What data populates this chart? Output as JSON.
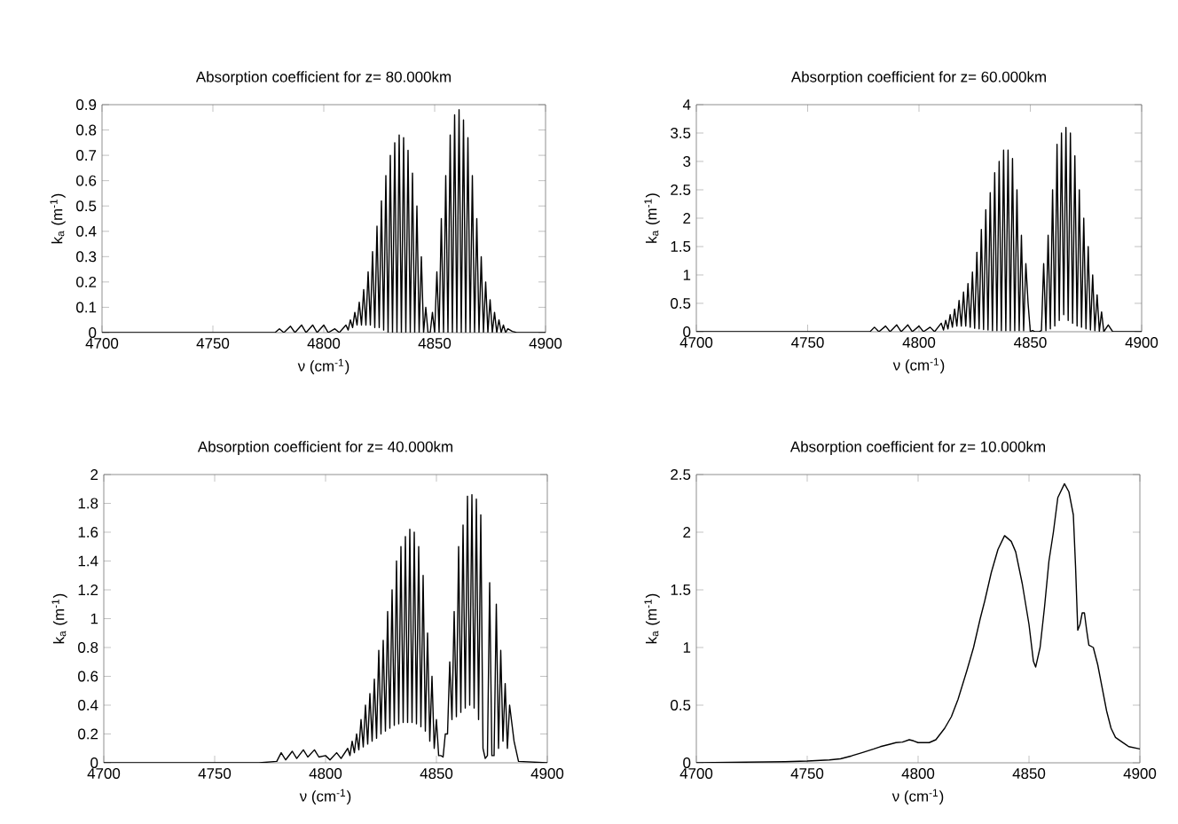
{
  "chart_data": [
    {
      "type": "line",
      "title": "Absorption coefficient for z= 80.000km",
      "xlabel": "ν (cm$^{-1}$)",
      "ylabel": "k$_{a}$ (m$^{-1}$)",
      "xlim": [
        4700,
        4900
      ],
      "ylim": [
        0,
        0.9
      ],
      "xticks": [
        4700,
        4750,
        4800,
        4850,
        4900
      ],
      "yticks": [
        0,
        0.1,
        0.2,
        0.3,
        0.4,
        0.5,
        0.6,
        0.7,
        0.8,
        0.9
      ],
      "grid": false,
      "marker": "none",
      "line_style": "solid",
      "series": [
        {
          "color": "#000000",
          "x": [
            4700,
            4770,
            4778,
            4780,
            4782,
            4785,
            4787,
            4790,
            4792,
            4795,
            4797,
            4800,
            4802,
            4805,
            4807,
            4810,
            4811,
            4812,
            4813,
            4814,
            4815,
            4816,
            4817,
            4818,
            4819,
            4820,
            4821,
            4822,
            4823,
            4824,
            4825,
            4826,
            4827,
            4828,
            4829,
            4830,
            4831,
            4832,
            4833,
            4834,
            4835,
            4836,
            4837,
            4838,
            4839,
            4840,
            4841,
            4842,
            4843,
            4844,
            4845,
            4846,
            4847,
            4848,
            4849,
            4850,
            4851,
            4852,
            4853,
            4854,
            4855,
            4856,
            4857,
            4858,
            4859,
            4860,
            4861,
            4862,
            4863,
            4864,
            4865,
            4866,
            4867,
            4868,
            4869,
            4870,
            4871,
            4872,
            4873,
            4874,
            4875,
            4876,
            4877,
            4878,
            4879,
            4880,
            4881,
            4882,
            4883,
            4885,
            4887,
            4900
          ],
          "values": [
            0,
            0,
            0,
            0.015,
            0,
            0.025,
            0,
            0.03,
            0,
            0.03,
            0,
            0.03,
            0,
            0.015,
            0,
            0.03,
            0.01,
            0.05,
            0.02,
            0.08,
            0.03,
            0.12,
            0.03,
            0.17,
            0.03,
            0.24,
            0.03,
            0.32,
            0.02,
            0.42,
            0.02,
            0.52,
            0.01,
            0.62,
            0,
            0.7,
            0,
            0.75,
            0,
            0.78,
            0,
            0.77,
            0,
            0.72,
            0,
            0.63,
            0,
            0.5,
            0,
            0.3,
            0,
            0.1,
            0,
            0,
            0.08,
            0,
            0.24,
            0,
            0.45,
            0,
            0.62,
            0,
            0.78,
            0,
            0.86,
            0,
            0.88,
            0,
            0.84,
            0,
            0.77,
            0,
            0.62,
            0,
            0.45,
            0,
            0.3,
            0,
            0.2,
            0,
            0.13,
            0,
            0.08,
            0,
            0.05,
            0,
            0.03,
            0,
            0.015,
            0.005,
            0,
            0
          ]
        }
      ]
    },
    {
      "type": "line",
      "title": "Absorption coefficient for z= 60.000km",
      "xlabel": "ν (cm$^{-1}$)",
      "ylabel": "k$_{a}$ (m$^{-1}$)",
      "xlim": [
        4700,
        4900
      ],
      "ylim": [
        0,
        4
      ],
      "xticks": [
        4700,
        4750,
        4800,
        4850,
        4900
      ],
      "yticks": [
        0,
        0.5,
        1,
        1.5,
        2,
        2.5,
        3,
        3.5,
        4
      ],
      "grid": false,
      "marker": "none",
      "line_style": "solid",
      "series": [
        {
          "color": "#000000",
          "x": [
            4700,
            4770,
            4778,
            4780,
            4782,
            4785,
            4787,
            4790,
            4792,
            4795,
            4797,
            4800,
            4802,
            4805,
            4807,
            4810,
            4811,
            4812,
            4813,
            4814,
            4815,
            4816,
            4817,
            4818,
            4819,
            4820,
            4821,
            4822,
            4823,
            4824,
            4825,
            4826,
            4827,
            4828,
            4829,
            4830,
            4831,
            4832,
            4833,
            4834,
            4835,
            4836,
            4837,
            4838,
            4839,
            4840,
            4841,
            4842,
            4843,
            4844,
            4845,
            4846,
            4847,
            4848,
            4849,
            4850,
            4851,
            4852,
            4853,
            4854,
            4855,
            4856,
            4857,
            4858,
            4859,
            4860,
            4861,
            4862,
            4863,
            4864,
            4865,
            4866,
            4867,
            4868,
            4869,
            4870,
            4871,
            4872,
            4873,
            4874,
            4875,
            4876,
            4877,
            4878,
            4879,
            4880,
            4881,
            4882,
            4883,
            4885,
            4887,
            4900
          ],
          "values": [
            0,
            0,
            0,
            0.08,
            0,
            0.1,
            0,
            0.12,
            0,
            0.12,
            0,
            0.1,
            0,
            0.08,
            0,
            0.15,
            0.03,
            0.2,
            0.05,
            0.3,
            0.08,
            0.4,
            0.1,
            0.55,
            0.1,
            0.7,
            0.1,
            0.85,
            0.08,
            1.05,
            0.06,
            1.4,
            0.05,
            1.8,
            0.04,
            2.15,
            0.03,
            2.45,
            0.02,
            2.8,
            0.02,
            3.0,
            0.02,
            3.2,
            0.02,
            3.2,
            0.02,
            3.05,
            0.02,
            2.5,
            0.02,
            1.7,
            0.02,
            1.2,
            0.5,
            0,
            0.02,
            0,
            0,
            0,
            0.02,
            1.2,
            0.02,
            1.7,
            0.05,
            2.5,
            0.1,
            3.3,
            0.2,
            3.5,
            0.3,
            3.6,
            0.2,
            3.5,
            0.15,
            3.1,
            0.1,
            2.5,
            0.08,
            2.0,
            0.05,
            1.5,
            0.03,
            1.0,
            0.02,
            0.65,
            0.01,
            0.35,
            0,
            0.12,
            0,
            0
          ]
        }
      ]
    },
    {
      "type": "line",
      "title": "Absorption coefficient for z= 40.000km",
      "xlabel": "ν (cm$^{-1}$)",
      "ylabel": "k$_{a}$ (m$^{-1}$)",
      "xlim": [
        4700,
        4900
      ],
      "ylim": [
        0,
        2
      ],
      "xticks": [
        4700,
        4750,
        4800,
        4850,
        4900
      ],
      "yticks": [
        0,
        0.2,
        0.4,
        0.6,
        0.8,
        1,
        1.2,
        1.4,
        1.6,
        1.8,
        2
      ],
      "grid": false,
      "marker": "none",
      "line_style": "solid",
      "series": [
        {
          "color": "#000000",
          "x": [
            4700,
            4770,
            4778,
            4780,
            4782,
            4785,
            4787,
            4790,
            4792,
            4795,
            4797,
            4800,
            4802,
            4805,
            4807,
            4810,
            4811,
            4812,
            4813,
            4814,
            4815,
            4816,
            4817,
            4818,
            4819,
            4820,
            4821,
            4822,
            4823,
            4824,
            4825,
            4826,
            4827,
            4828,
            4829,
            4830,
            4831,
            4832,
            4833,
            4834,
            4835,
            4836,
            4837,
            4838,
            4839,
            4840,
            4841,
            4842,
            4843,
            4844,
            4845,
            4846,
            4847,
            4848,
            4849,
            4850,
            4851,
            4852,
            4853,
            4854,
            4855,
            4856,
            4857,
            4858,
            4859,
            4860,
            4861,
            4862,
            4863,
            4864,
            4865,
            4866,
            4867,
            4868,
            4869,
            4870,
            4871,
            4872,
            4873,
            4874,
            4875,
            4876,
            4877,
            4878,
            4879,
            4880,
            4881,
            4882,
            4883,
            4885,
            4887,
            4900
          ],
          "values": [
            0,
            0,
            0.01,
            0.07,
            0.02,
            0.08,
            0.03,
            0.09,
            0.04,
            0.09,
            0.04,
            0.05,
            0.02,
            0.07,
            0.03,
            0.1,
            0.05,
            0.15,
            0.07,
            0.2,
            0.09,
            0.3,
            0.11,
            0.4,
            0.13,
            0.48,
            0.15,
            0.58,
            0.17,
            0.78,
            0.2,
            0.85,
            0.22,
            1.05,
            0.24,
            1.2,
            0.26,
            1.4,
            0.27,
            1.5,
            0.28,
            1.57,
            0.28,
            1.62,
            0.28,
            1.6,
            0.27,
            1.5,
            0.25,
            1.3,
            0.22,
            0.9,
            0.15,
            0.6,
            0.1,
            0.3,
            0.05,
            0.05,
            0.04,
            0.2,
            0.2,
            0.7,
            0.3,
            1.05,
            0.32,
            1.5,
            0.35,
            1.65,
            0.38,
            1.85,
            0.4,
            1.86,
            0.38,
            1.83,
            0.3,
            1.72,
            0.1,
            0.03,
            0.05,
            1.25,
            0.05,
            0.05,
            1.1,
            0.1,
            0.78,
            0.15,
            0.55,
            0.1,
            0.4,
            0.15,
            0.01,
            0
          ]
        }
      ]
    },
    {
      "type": "line",
      "title": "Absorption coefficient for z= 10.000km",
      "xlabel": "ν (cm$^{-1}$)",
      "ylabel": "k$_{a}$ (m$^{-1}$)",
      "xlim": [
        4700,
        4900
      ],
      "ylim": [
        0,
        2.5
      ],
      "xticks": [
        4700,
        4750,
        4800,
        4850,
        4900
      ],
      "yticks": [
        0,
        0.5,
        1,
        1.5,
        2,
        2.5
      ],
      "grid": false,
      "marker": "none",
      "line_style": "solid",
      "series": [
        {
          "color": "#000000",
          "x": [
            4700,
            4720,
            4740,
            4750,
            4760,
            4765,
            4770,
            4775,
            4780,
            4783,
            4787,
            4790,
            4793,
            4796,
            4798,
            4800,
            4805,
            4808,
            4812,
            4815,
            4818,
            4822,
            4825,
            4828,
            4830,
            4833,
            4836,
            4839,
            4842,
            4844,
            4847,
            4850,
            4852,
            4853,
            4855,
            4857,
            4859,
            4861,
            4863,
            4866,
            4868,
            4870,
            4871,
            4872,
            4873,
            4874,
            4875,
            4876,
            4877,
            4879,
            4881,
            4883,
            4885,
            4887,
            4889,
            4892,
            4895,
            4900
          ],
          "values": [
            0,
            0.005,
            0.01,
            0.015,
            0.025,
            0.035,
            0.06,
            0.09,
            0.12,
            0.14,
            0.16,
            0.175,
            0.18,
            0.2,
            0.19,
            0.175,
            0.175,
            0.2,
            0.3,
            0.4,
            0.55,
            0.8,
            1.0,
            1.25,
            1.4,
            1.65,
            1.85,
            1.97,
            1.92,
            1.83,
            1.55,
            1.2,
            0.88,
            0.83,
            1.0,
            1.35,
            1.75,
            2.0,
            2.3,
            2.42,
            2.35,
            2.15,
            1.7,
            1.15,
            1.2,
            1.3,
            1.3,
            1.15,
            1.02,
            1.0,
            0.85,
            0.65,
            0.45,
            0.3,
            0.22,
            0.18,
            0.14,
            0.12
          ]
        }
      ]
    }
  ]
}
